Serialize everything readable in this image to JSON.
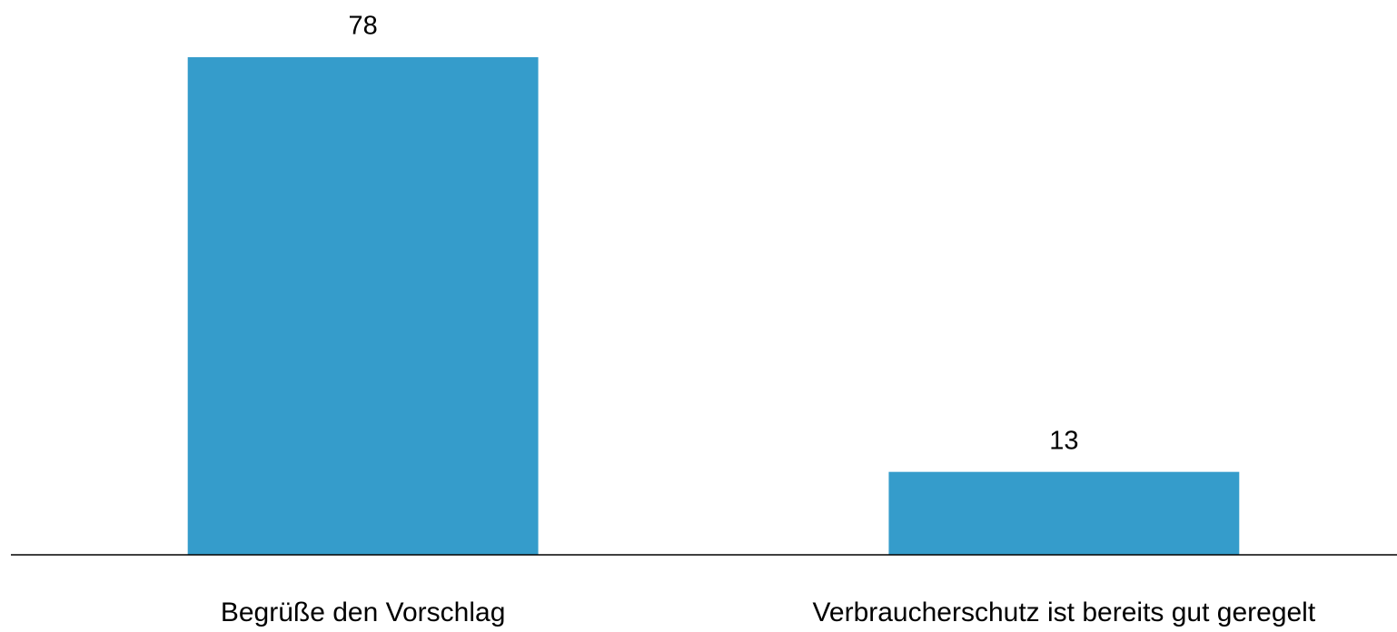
{
  "chart_data": {
    "type": "bar",
    "categories": [
      "Begrüße den Vorschlag",
      "Verbraucherschutz ist bereits gut geregelt"
    ],
    "values": [
      78,
      13
    ],
    "color": "#359ccb",
    "ylim": [
      0,
      78
    ],
    "grid": false
  }
}
